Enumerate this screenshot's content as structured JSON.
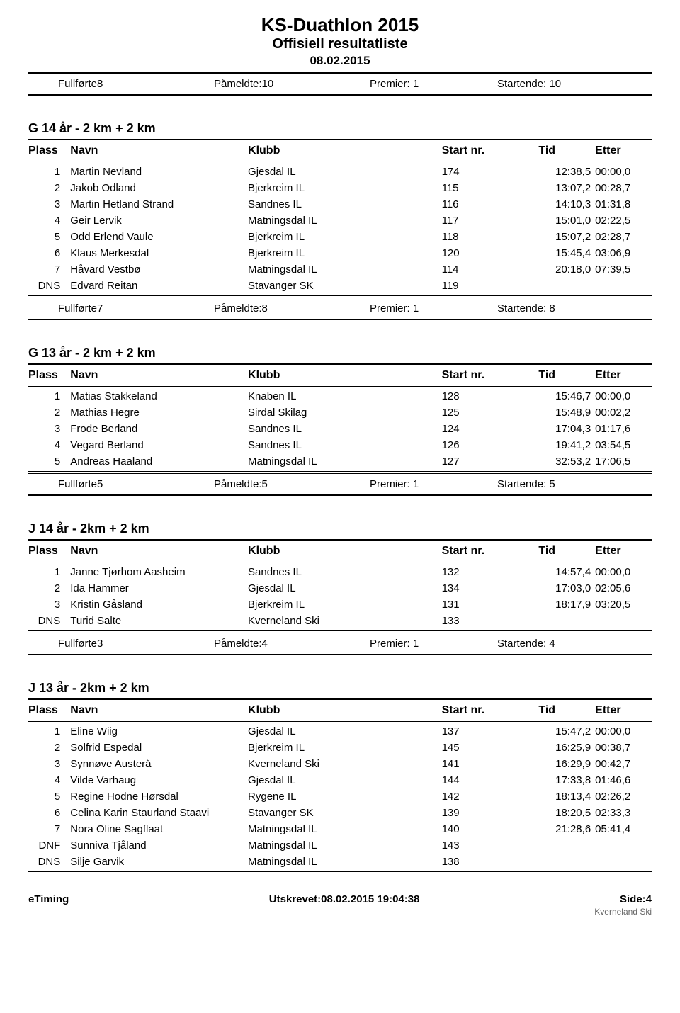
{
  "header": {
    "title": "KS-Duathlon 2015",
    "subtitle": "Offisiell resultatliste",
    "date": "08.02.2015"
  },
  "top_summary": {
    "fullforte": "Fullførte8",
    "pameldte": "Påmeldte:10",
    "premier": "Premier: 1",
    "startende": "Startende: 10"
  },
  "columns": {
    "plass": "Plass",
    "navn": "Navn",
    "klubb": "Klubb",
    "startnr": "Start nr.",
    "tid": "Tid",
    "etter": "Etter"
  },
  "sections": [
    {
      "title": "G 14 år - 2 km + 2 km",
      "rows": [
        {
          "plass": "1",
          "navn": "Martin Nevland",
          "klubb": "Gjesdal IL",
          "start": "174",
          "tid": "12:38,5",
          "etter": "00:00,0"
        },
        {
          "plass": "2",
          "navn": "Jakob Odland",
          "klubb": "Bjerkreim IL",
          "start": "115",
          "tid": "13:07,2",
          "etter": "00:28,7"
        },
        {
          "plass": "3",
          "navn": "Martin Hetland Strand",
          "klubb": "Sandnes IL",
          "start": "116",
          "tid": "14:10,3",
          "etter": "01:31,8"
        },
        {
          "plass": "4",
          "navn": "Geir Lervik",
          "klubb": "Matningsdal IL",
          "start": "117",
          "tid": "15:01,0",
          "etter": "02:22,5"
        },
        {
          "plass": "5",
          "navn": "Odd Erlend Vaule",
          "klubb": "Bjerkreim IL",
          "start": "118",
          "tid": "15:07,2",
          "etter": "02:28,7"
        },
        {
          "plass": "6",
          "navn": "Klaus Merkesdal",
          "klubb": "Bjerkreim IL",
          "start": "120",
          "tid": "15:45,4",
          "etter": "03:06,9"
        },
        {
          "plass": "7",
          "navn": "Håvard Vestbø",
          "klubb": "Matningsdal IL",
          "start": "114",
          "tid": "20:18,0",
          "etter": "07:39,5"
        },
        {
          "plass": "DNS",
          "navn": "Edvard Reitan",
          "klubb": "Stavanger SK",
          "start": "119",
          "tid": "",
          "etter": ""
        }
      ],
      "summary": {
        "fullforte": "Fullførte7",
        "pameldte": "Påmeldte:8",
        "premier": "Premier: 1",
        "startende": "Startende: 8"
      }
    },
    {
      "title": "G 13 år - 2 km + 2 km",
      "rows": [
        {
          "plass": "1",
          "navn": "Matias Stakkeland",
          "klubb": "Knaben IL",
          "start": "128",
          "tid": "15:46,7",
          "etter": "00:00,0"
        },
        {
          "plass": "2",
          "navn": "Mathias Hegre",
          "klubb": "Sirdal Skilag",
          "start": "125",
          "tid": "15:48,9",
          "etter": "00:02,2"
        },
        {
          "plass": "3",
          "navn": "Frode Berland",
          "klubb": "Sandnes IL",
          "start": "124",
          "tid": "17:04,3",
          "etter": "01:17,6"
        },
        {
          "plass": "4",
          "navn": "Vegard Berland",
          "klubb": "Sandnes IL",
          "start": "126",
          "tid": "19:41,2",
          "etter": "03:54,5"
        },
        {
          "plass": "5",
          "navn": "Andreas Haaland",
          "klubb": "Matningsdal IL",
          "start": "127",
          "tid": "32:53,2",
          "etter": "17:06,5"
        }
      ],
      "summary": {
        "fullforte": "Fullførte5",
        "pameldte": "Påmeldte:5",
        "premier": "Premier: 1",
        "startende": "Startende: 5"
      }
    },
    {
      "title": "J 14 år - 2km + 2 km",
      "rows": [
        {
          "plass": "1",
          "navn": "Janne Tjørhom Aasheim",
          "klubb": "Sandnes IL",
          "start": "132",
          "tid": "14:57,4",
          "etter": "00:00,0"
        },
        {
          "plass": "2",
          "navn": "Ida Hammer",
          "klubb": "Gjesdal IL",
          "start": "134",
          "tid": "17:03,0",
          "etter": "02:05,6"
        },
        {
          "plass": "3",
          "navn": "Kristin Gåsland",
          "klubb": "Bjerkreim IL",
          "start": "131",
          "tid": "18:17,9",
          "etter": "03:20,5"
        },
        {
          "plass": "DNS",
          "navn": "Turid Salte",
          "klubb": "Kverneland Ski",
          "start": "133",
          "tid": "",
          "etter": ""
        }
      ],
      "summary": {
        "fullforte": "Fullførte3",
        "pameldte": "Påmeldte:4",
        "premier": "Premier: 1",
        "startende": "Startende: 4"
      }
    },
    {
      "title": "J 13 år - 2km + 2 km",
      "rows": [
        {
          "plass": "1",
          "navn": "Eline Wiig",
          "klubb": "Gjesdal IL",
          "start": "137",
          "tid": "15:47,2",
          "etter": "00:00,0"
        },
        {
          "plass": "2",
          "navn": "Solfrid Espedal",
          "klubb": "Bjerkreim IL",
          "start": "145",
          "tid": "16:25,9",
          "etter": "00:38,7"
        },
        {
          "plass": "3",
          "navn": "Synnøve Austerå",
          "klubb": "Kverneland Ski",
          "start": "141",
          "tid": "16:29,9",
          "etter": "00:42,7"
        },
        {
          "plass": "4",
          "navn": "Vilde Varhaug",
          "klubb": "Gjesdal IL",
          "start": "144",
          "tid": "17:33,8",
          "etter": "01:46,6"
        },
        {
          "plass": "5",
          "navn": "Regine Hodne Hørsdal",
          "klubb": "Rygene IL",
          "start": "142",
          "tid": "18:13,4",
          "etter": "02:26,2"
        },
        {
          "plass": "6",
          "navn": "Celina Karin Staurland Staavi",
          "klubb": "Stavanger SK",
          "start": "139",
          "tid": "18:20,5",
          "etter": "02:33,3",
          "small": true
        },
        {
          "plass": "7",
          "navn": "Nora Oline Sagflaat",
          "klubb": "Matningsdal IL",
          "start": "140",
          "tid": "21:28,6",
          "etter": "05:41,4"
        },
        {
          "plass": "DNF",
          "navn": "Sunniva Tjåland",
          "klubb": "Matningsdal IL",
          "start": "143",
          "tid": "",
          "etter": ""
        },
        {
          "plass": "DNS",
          "navn": "Silje Garvik",
          "klubb": "Matningsdal IL",
          "start": "138",
          "tid": "",
          "etter": ""
        }
      ]
    }
  ],
  "footer": {
    "left": "eTiming",
    "center": "Utskrevet:08.02.2015 19:04:38",
    "right": "Side:4",
    "sub": "Kverneland Ski"
  }
}
